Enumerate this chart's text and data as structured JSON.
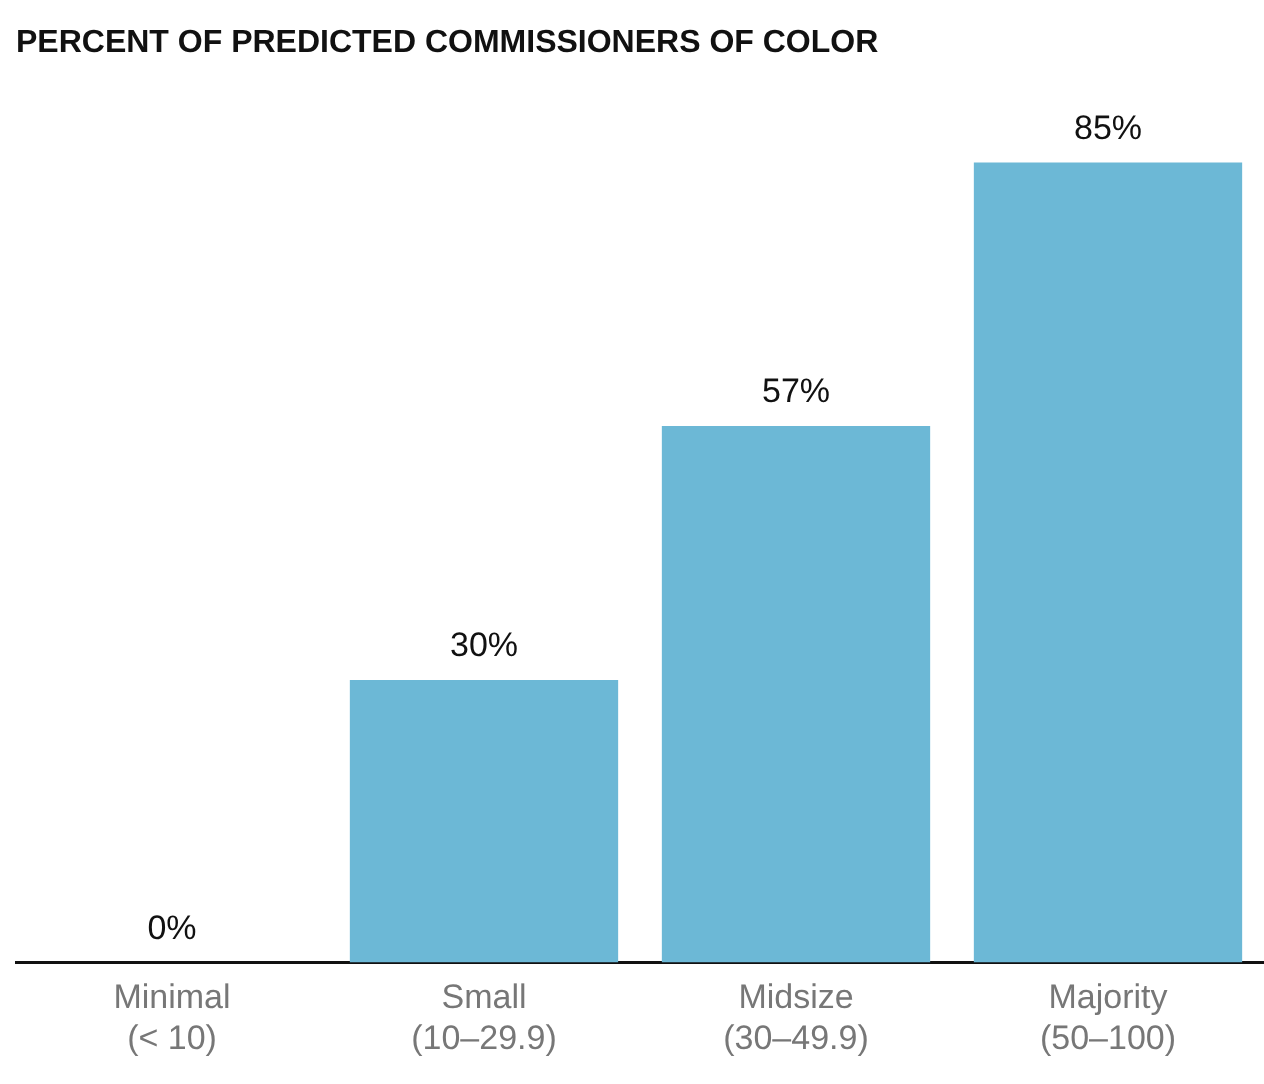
{
  "chart_data": {
    "type": "bar",
    "title": "PERCENT OF PREDICTED COMMISSIONERS OF COLOR",
    "categories": [
      "Minimal\n(< 10)",
      "Small\n(10–29.9)",
      "Midsize\n(30–49.9)",
      "Majority\n(50–100)"
    ],
    "values": [
      0,
      30,
      57,
      85
    ],
    "color": "#6cb8d6",
    "value_labels": [
      "0%",
      "30%",
      "57%",
      "85%"
    ],
    "grid": false,
    "legend": false
  }
}
